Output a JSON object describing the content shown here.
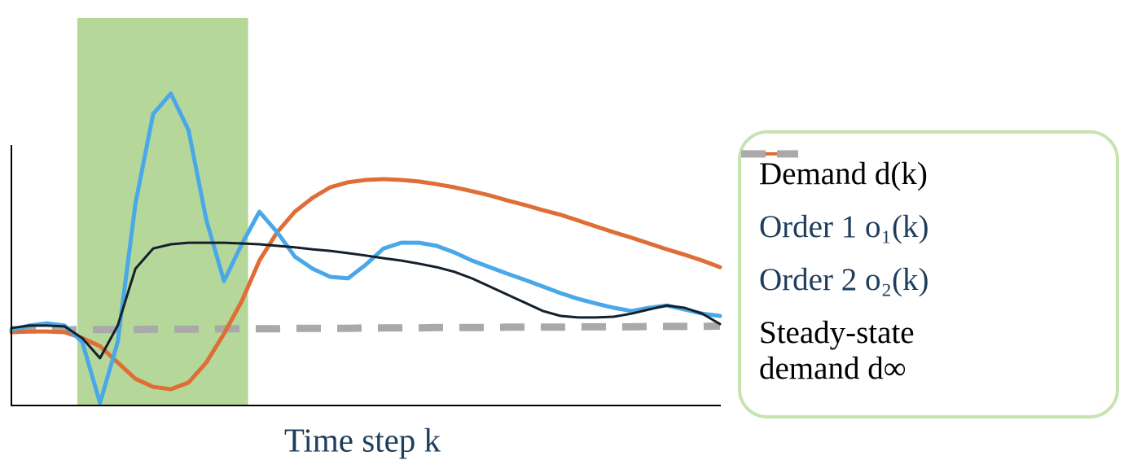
{
  "chart_data": {
    "type": "line",
    "x_label": "Time step k",
    "xlim": [
      0,
      100
    ],
    "ylim": [
      0,
      100
    ],
    "shaded_span": {
      "range": [
        9.3,
        33.4
      ],
      "color": "#b5d79a"
    },
    "x": [
      0,
      2.5,
      5,
      7.5,
      10,
      12.5,
      15,
      17.5,
      20,
      22.5,
      25,
      27.5,
      30,
      32.5,
      35,
      37.5,
      40,
      42.5,
      45,
      47.5,
      50,
      52.5,
      55,
      57.5,
      60,
      62.5,
      65,
      67.5,
      70,
      72.5,
      75,
      77.5,
      80,
      82.5,
      85,
      87.5,
      90,
      92.5,
      95,
      97.5,
      100
    ],
    "series": [
      {
        "name": "Demand d(k)",
        "color": "#15202b",
        "text_color": "#000000",
        "values": [
          20.0,
          20.6,
          20.6,
          20.4,
          17.4,
          12.2,
          20.6,
          35.3,
          40.5,
          41.6,
          42.0,
          42.0,
          42.0,
          41.8,
          41.6,
          41.2,
          40.8,
          40.3,
          39.9,
          39.3,
          38.7,
          38.0,
          37.4,
          36.6,
          35.7,
          34.5,
          32.8,
          30.7,
          28.6,
          26.5,
          24.4,
          23.1,
          22.7,
          22.7,
          22.9,
          23.7,
          24.8,
          25.8,
          25.2,
          23.7,
          21.0
        ]
      },
      {
        "name": "Order 1 o₁(k)",
        "color": "#4aa8e8",
        "text_color": "#1f3d5c",
        "values": [
          19.5,
          20.6,
          21.2,
          20.6,
          16.4,
          0.6,
          16.4,
          52.1,
          75.2,
          80.5,
          71.0,
          47.9,
          32.1,
          41.6,
          50.0,
          44.7,
          38.4,
          35.3,
          33.2,
          32.8,
          36.3,
          40.5,
          42.0,
          42.0,
          41.2,
          39.5,
          37.4,
          35.7,
          34.0,
          32.4,
          30.7,
          29.0,
          27.5,
          26.3,
          25.2,
          24.4,
          25.2,
          25.8,
          24.8,
          23.7,
          23.1
        ]
      },
      {
        "name": "Order 2 o₂(k)",
        "color": "#de6e35",
        "text_color": "#1f3d5c",
        "values": [
          18.9,
          19.1,
          19.1,
          18.9,
          17.4,
          15.3,
          11.1,
          6.9,
          4.8,
          4.2,
          5.9,
          11.1,
          18.5,
          26.9,
          37.4,
          44.7,
          50.0,
          53.6,
          56.3,
          57.6,
          58.2,
          58.4,
          58.2,
          57.8,
          57.1,
          56.3,
          55.3,
          54.2,
          52.9,
          51.7,
          50.4,
          49.2,
          47.7,
          46.2,
          44.7,
          43.3,
          41.8,
          40.3,
          38.9,
          37.4,
          35.7
        ]
      },
      {
        "name": "Steady-state demand d∞",
        "color": "#a9a9a9",
        "text_color": "#000000",
        "dashed": true,
        "values": [
          19.5,
          19.5,
          19.5,
          19.5,
          19.6,
          19.6,
          19.6,
          19.6,
          19.7,
          19.7,
          19.7,
          19.7,
          19.8,
          19.8,
          19.8,
          19.8,
          19.9,
          19.9,
          19.9,
          19.9,
          20.0,
          20.0,
          20.0,
          20.0,
          20.1,
          20.1,
          20.1,
          20.1,
          20.2,
          20.2,
          20.2,
          20.2,
          20.3,
          20.3,
          20.3,
          20.3,
          20.4,
          20.4,
          20.4,
          20.4,
          20.5
        ]
      }
    ]
  }
}
